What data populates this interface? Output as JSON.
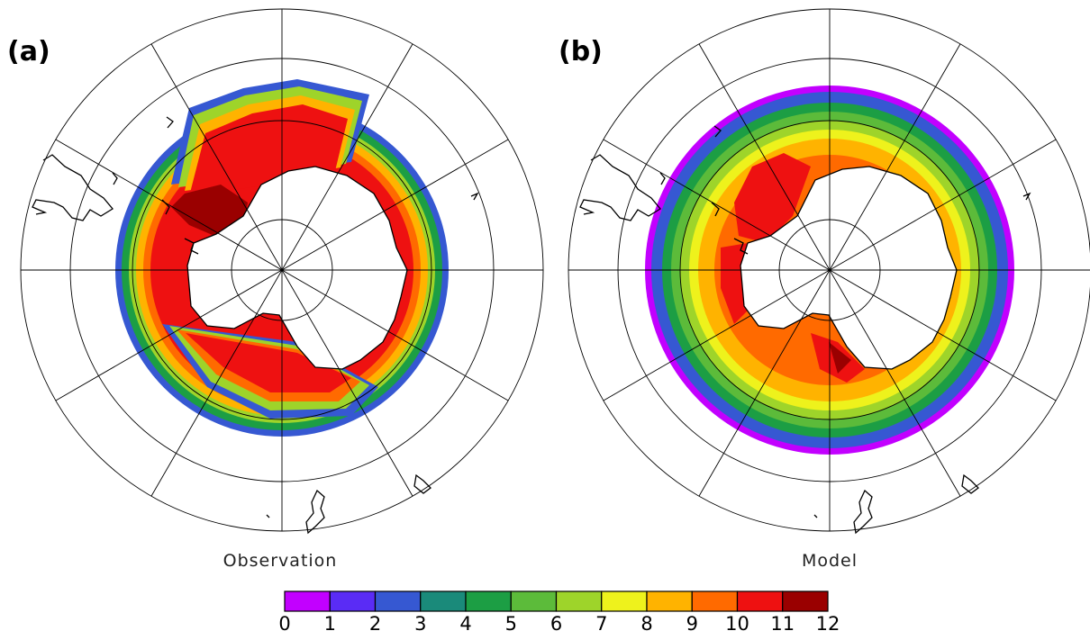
{
  "figure": {
    "panels": [
      {
        "label": "(a)",
        "caption": "Observation"
      },
      {
        "label": "(b)",
        "caption": "Model"
      }
    ]
  },
  "colorbar": {
    "ticks": [
      "0",
      "1",
      "2",
      "3",
      "4",
      "5",
      "6",
      "7",
      "8",
      "9",
      "10",
      "11",
      "12"
    ],
    "colors": [
      "#c200ff",
      "#5a2cf5",
      "#3658d2",
      "#1a8a7a",
      "#1c9e44",
      "#5cbb3a",
      "#9ed42a",
      "#eef21c",
      "#ffb300",
      "#ff6a00",
      "#ee1111",
      "#9a0000"
    ]
  }
}
